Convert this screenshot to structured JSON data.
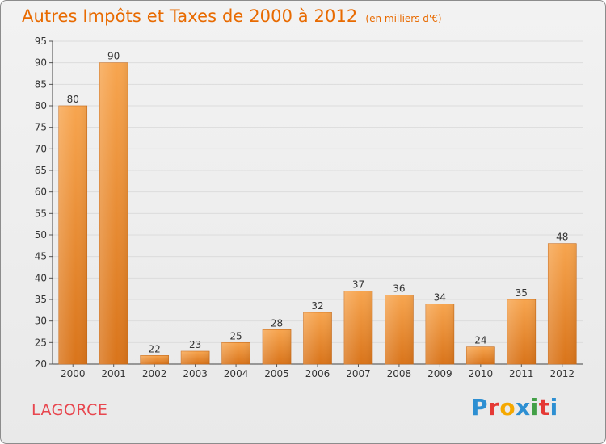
{
  "header": {
    "title": "Autres Impôts et Taxes de 2000 à 2012",
    "subtitle": "(en milliers d'€)"
  },
  "footer": {
    "place": "LAGORCE",
    "logo_letters": [
      "P",
      "r",
      "o",
      "x",
      "i",
      "t",
      "i"
    ]
  },
  "colors": {
    "title": "#e86a00",
    "place": "#e8464e",
    "bar_light": "#f7a54f",
    "bar_dark": "#d9741a",
    "grid": "#dcdcdc"
  },
  "chart_data": {
    "type": "bar",
    "title": "Autres Impôts et Taxes de 2000 à 2012",
    "subtitle": "(en milliers d'€)",
    "xlabel": "",
    "ylabel": "",
    "categories": [
      "2000",
      "2001",
      "2002",
      "2003",
      "2004",
      "2005",
      "2006",
      "2007",
      "2008",
      "2009",
      "2010",
      "2011",
      "2012"
    ],
    "values": [
      80,
      90,
      22,
      23,
      25,
      28,
      32,
      37,
      36,
      34,
      24,
      35,
      48
    ],
    "ylim": [
      20,
      95
    ],
    "yticks": [
      20,
      25,
      30,
      35,
      40,
      45,
      50,
      55,
      60,
      65,
      70,
      75,
      80,
      85,
      90,
      95
    ],
    "grid": true,
    "legend": "none"
  }
}
